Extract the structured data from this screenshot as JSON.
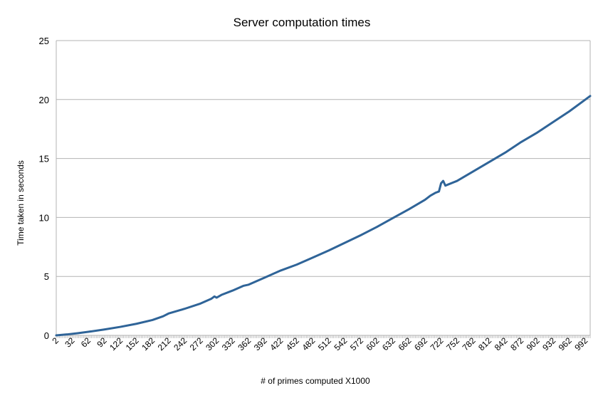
{
  "chart_data": {
    "type": "line",
    "title": "Server computation times",
    "xlabel": "# of primes computed X1000",
    "ylabel": "Time taken in seconds",
    "ylim": [
      0,
      25
    ],
    "y_ticks": [
      0,
      5,
      10,
      15,
      20,
      25
    ],
    "x_tick_labels": [
      "2",
      "32",
      "62",
      "92",
      "122",
      "152",
      "182",
      "212",
      "242",
      "272",
      "302",
      "332",
      "362",
      "392",
      "422",
      "452",
      "482",
      "512",
      "542",
      "572",
      "602",
      "632",
      "662",
      "692",
      "722",
      "752",
      "782",
      "812",
      "842",
      "872",
      "902",
      "932",
      "962",
      "992"
    ],
    "x_range": [
      2,
      1001
    ],
    "grid": "horizontal",
    "legend": "none",
    "colors": {
      "series": "#2f6498",
      "grid": "#b3b3b3",
      "axis": "#b3b3b3"
    },
    "series": [
      {
        "points": [
          [
            2,
            0.0
          ],
          [
            22,
            0.08
          ],
          [
            42,
            0.18
          ],
          [
            62,
            0.3
          ],
          [
            92,
            0.5
          ],
          [
            122,
            0.72
          ],
          [
            152,
            0.98
          ],
          [
            182,
            1.3
          ],
          [
            202,
            1.62
          ],
          [
            212,
            1.85
          ],
          [
            242,
            2.25
          ],
          [
            272,
            2.7
          ],
          [
            292,
            3.1
          ],
          [
            298,
            3.3
          ],
          [
            302,
            3.2
          ],
          [
            312,
            3.45
          ],
          [
            332,
            3.8
          ],
          [
            352,
            4.2
          ],
          [
            362,
            4.3
          ],
          [
            392,
            4.9
          ],
          [
            422,
            5.5
          ],
          [
            452,
            6.0
          ],
          [
            482,
            6.6
          ],
          [
            512,
            7.2
          ],
          [
            542,
            7.85
          ],
          [
            572,
            8.5
          ],
          [
            602,
            9.2
          ],
          [
            632,
            9.95
          ],
          [
            662,
            10.7
          ],
          [
            692,
            11.5
          ],
          [
            702,
            11.85
          ],
          [
            712,
            12.1
          ],
          [
            718,
            12.2
          ],
          [
            722,
            12.9
          ],
          [
            726,
            13.1
          ],
          [
            730,
            12.7
          ],
          [
            752,
            13.1
          ],
          [
            782,
            13.9
          ],
          [
            812,
            14.7
          ],
          [
            842,
            15.5
          ],
          [
            872,
            16.4
          ],
          [
            902,
            17.2
          ],
          [
            932,
            18.1
          ],
          [
            962,
            19.0
          ],
          [
            992,
            20.0
          ],
          [
            1001,
            20.3
          ]
        ]
      }
    ]
  }
}
